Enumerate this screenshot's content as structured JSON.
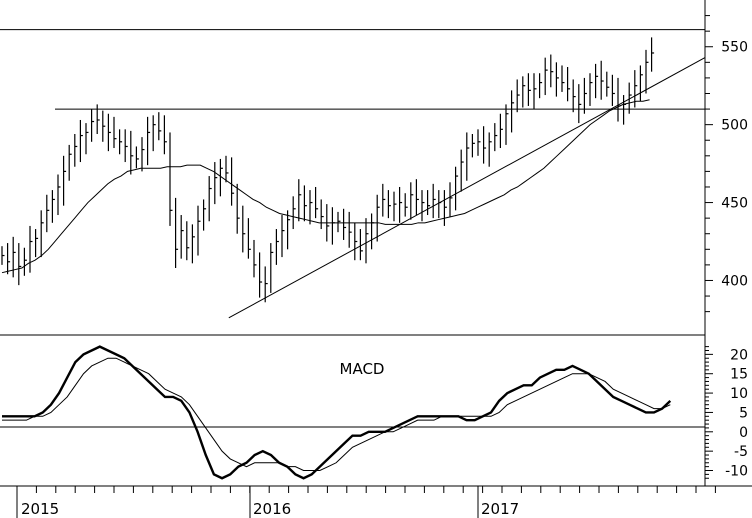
{
  "chart_data": [
    {
      "type": "candlestick",
      "title": "",
      "ylim": [
        365,
        580
      ],
      "y_ticks": [
        "400",
        "450",
        "500",
        "550"
      ],
      "x_year_labels": [
        "2015",
        "2016",
        "2017"
      ],
      "resistance_lines": [
        561,
        510
      ],
      "trendline": {
        "from_week": 40.5,
        "from_value": 376,
        "to_week": 124,
        "to_value": 540
      },
      "moving_average": [
        405,
        406,
        407,
        408,
        411,
        413,
        416,
        420,
        425,
        430,
        435,
        440,
        445,
        450,
        454,
        458,
        462,
        465,
        467,
        470,
        471,
        472,
        472,
        472,
        472,
        473,
        473,
        473,
        474,
        474,
        474,
        472,
        470,
        467,
        464,
        461,
        458,
        455,
        452,
        450,
        447,
        445,
        443,
        442,
        441,
        440,
        439,
        438,
        437,
        437,
        437,
        437,
        437,
        437,
        437,
        437,
        437,
        437,
        436,
        436,
        436,
        436,
        436,
        437,
        437,
        438,
        439,
        440,
        441,
        442,
        443,
        445,
        447,
        449,
        451,
        453,
        455,
        458,
        460,
        463,
        466,
        469,
        472,
        476,
        480,
        484,
        488,
        492,
        496,
        500,
        503,
        506,
        509,
        511,
        513,
        514,
        515,
        515,
        516
      ],
      "weekly_close": [
        416,
        412,
        418,
        409,
        413,
        425,
        427,
        437,
        445,
        452,
        460,
        470,
        481,
        486,
        493,
        495,
        502,
        503,
        499,
        495,
        491,
        489,
        486,
        480,
        478,
        484,
        495,
        500,
        496,
        489,
        445,
        420,
        432,
        421,
        428,
        438,
        446,
        459,
        466,
        472,
        469,
        456,
        440,
        430,
        420,
        410,
        399,
        398,
        418,
        425,
        432,
        439,
        446,
        455,
        448,
        450,
        446,
        441,
        435,
        437,
        438,
        434,
        431,
        425,
        419,
        430,
        437,
        447,
        452,
        448,
        449,
        450,
        447,
        455,
        452,
        450,
        448,
        452,
        450,
        447,
        453,
        467,
        476,
        485,
        488,
        489,
        485,
        489,
        493,
        497,
        507,
        514,
        519,
        525,
        522,
        523,
        527,
        535,
        534,
        530,
        527,
        523,
        518,
        513,
        520,
        527,
        531,
        528,
        524,
        520,
        512,
        513,
        519,
        525,
        532,
        540,
        546
      ]
    },
    {
      "type": "line",
      "title": "MACD",
      "ylim": [
        -14,
        25
      ],
      "y_ticks": [
        "-10",
        "-5",
        "0",
        "5",
        "10",
        "15",
        "20"
      ],
      "series": [
        {
          "values": [
            4,
            4,
            4,
            4,
            4,
            5,
            7,
            10,
            14,
            18,
            20,
            21,
            22,
            21,
            20,
            19,
            17,
            15,
            13,
            11,
            9,
            9,
            8,
            5,
            0,
            -6,
            -11,
            -12,
            -11,
            -9,
            -8,
            -6,
            -5,
            -6,
            -8,
            -9,
            -11,
            -12,
            -11,
            -9,
            -7,
            -5,
            -3,
            -1,
            -1,
            0,
            0,
            0,
            1,
            2,
            3,
            4,
            4,
            4,
            4,
            4,
            4,
            3,
            3,
            4,
            5,
            8,
            10,
            11,
            12,
            12,
            14,
            15,
            16,
            16,
            17,
            16,
            15,
            13,
            11,
            9,
            8,
            7,
            6,
            5,
            5,
            6,
            8
          ]
        },
        {
          "values": [
            3,
            3,
            3,
            3,
            4,
            4,
            5,
            7,
            9,
            12,
            15,
            17,
            18,
            19,
            19,
            18,
            17,
            16,
            15,
            13,
            11,
            10,
            9,
            7,
            4,
            1,
            -2,
            -5,
            -7,
            -8,
            -9,
            -8,
            -8,
            -8,
            -8,
            -9,
            -9,
            -10,
            -10,
            -10,
            -9,
            -8,
            -6,
            -4,
            -3,
            -2,
            -1,
            0,
            0,
            1,
            2,
            3,
            3,
            3,
            4,
            4,
            4,
            4,
            4,
            4,
            4,
            5,
            7,
            8,
            9,
            10,
            11,
            12,
            13,
            14,
            15,
            15,
            15,
            14,
            13,
            11,
            10,
            9,
            8,
            7,
            6,
            6,
            7
          ]
        }
      ]
    }
  ]
}
